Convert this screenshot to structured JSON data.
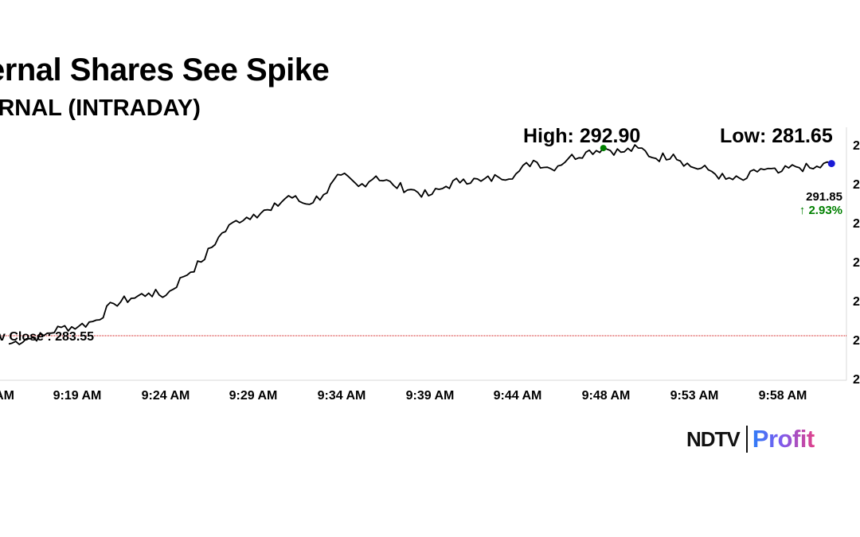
{
  "chart_data": {
    "type": "line",
    "title": "ernal Shares See Spike",
    "subtitle": "ERNAL (INTRADAY)",
    "high_label": "High: 292.90",
    "low_label": "Low: 281.65",
    "high": 292.9,
    "low": 281.65,
    "prev_close": 283.55,
    "prev_close_label": "v Close : 283.55",
    "last_price_label": "291.85",
    "change_label": "↑ 2.93%",
    "last_price": 291.85,
    "ylim": [
      281.4,
      293.6
    ],
    "x_tick_labels": [
      "AM",
      "9:19 AM",
      "9:24 AM",
      "9:29 AM",
      "9:34 AM",
      "9:39 AM",
      "9:44 AM",
      "9:48 AM",
      "9:53 AM",
      "9:58 AM"
    ],
    "y_tick_labels": [
      "2",
      "2",
      "2",
      "2",
      "2",
      "2",
      "2"
    ],
    "x_range_minutes": [
      -0.5,
      47.9
    ],
    "x": [
      0,
      1,
      2,
      3,
      4,
      5,
      6,
      7,
      8,
      9,
      10,
      11,
      12,
      13,
      14,
      15,
      16,
      17,
      18,
      19,
      20,
      21,
      22,
      23,
      24,
      25,
      26,
      27,
      28,
      29,
      30,
      31,
      32,
      33,
      34,
      35,
      36,
      37,
      38,
      39,
      40,
      41,
      42,
      43,
      44,
      45,
      46,
      47
    ],
    "series": [
      {
        "values": [
          283.15,
          283.4,
          283.55,
          283.95,
          284.0,
          284.3,
          285.1,
          285.35,
          285.6,
          285.5,
          286.4,
          287.1,
          288.3,
          289.1,
          289.4,
          289.6,
          290.3,
          289.9,
          290.35,
          291.3,
          290.75,
          291.25,
          290.8,
          290.6,
          290.3,
          290.75,
          291.1,
          291.0,
          291.2,
          291.35,
          292.0,
          291.6,
          292.1,
          292.4,
          292.6,
          292.4,
          292.6,
          292.1,
          292.3,
          291.7,
          291.55,
          291.1,
          291.05,
          291.6,
          291.4,
          291.7,
          291.6,
          291.85
        ]
      }
    ],
    "grid": false,
    "legend": "none",
    "colors": {
      "line": "#000000",
      "prev_close_line": "#cc0000",
      "high_marker": "#008000",
      "last_marker": "#1a1ad6",
      "change_text": "#008000",
      "axis": "#d9d9d9"
    }
  },
  "branding": {
    "ndtv": "NDTV",
    "profit": "Profit"
  }
}
